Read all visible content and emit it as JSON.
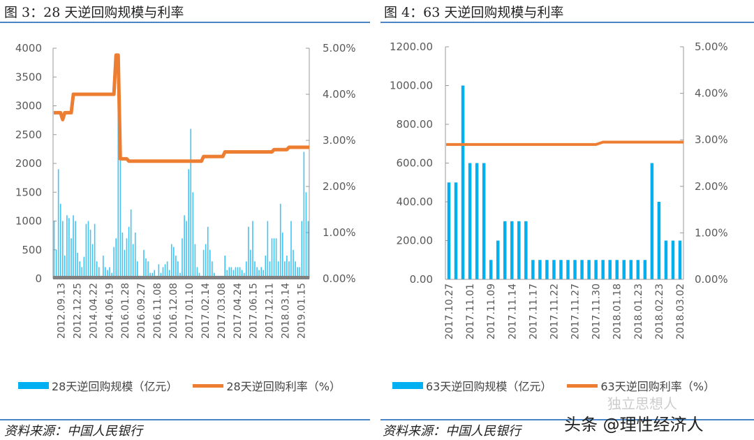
{
  "chart_data": [
    {
      "type": "bar+line",
      "title": "图 3：28 天逆回购规模与利率",
      "ylim": [
        0,
        4000
      ],
      "yticks": [
        "0",
        "500",
        "1000",
        "1500",
        "2000",
        "2500",
        "3000",
        "3500",
        "4000"
      ],
      "y2lim": [
        0,
        5
      ],
      "y2ticks": [
        "0.00%",
        "1.00%",
        "2.00%",
        "3.00%",
        "4.00%",
        "5.00%"
      ],
      "xtick_labels": [
        "2012.09.13",
        "2012.12.25",
        "2014.04.22",
        "2014.06.19",
        "2016.01.28",
        "2016.09.27",
        "2016.11.08",
        "2016.12.08",
        "2017.01.10",
        "2017.02.14",
        "2017.03.08",
        "2017.04.24",
        "2017.06.15",
        "2017.12.11",
        "2018.03.14",
        "2019.01.15"
      ],
      "series": [
        {
          "name": "28天逆回购规模（亿元）",
          "type": "bar",
          "color": "#00b0f0",
          "values": [
            1000,
            500,
            1900,
            1300,
            1000,
            400,
            1100,
            1050,
            700,
            1100,
            1000,
            450,
            300,
            200,
            380,
            950,
            1000,
            850,
            600,
            950,
            300,
            200,
            50,
            400,
            200,
            150,
            200,
            100,
            550,
            700,
            3600,
            2600,
            800,
            500,
            700,
            900,
            1200,
            600,
            800,
            300,
            50,
            50,
            500,
            350,
            300,
            100,
            100,
            150,
            50,
            250,
            100,
            200,
            250,
            300,
            150,
            600,
            550,
            400,
            300,
            100,
            700,
            1100,
            1000,
            1900,
            2600,
            1500,
            600,
            200,
            100,
            50,
            500,
            600,
            900,
            500,
            300,
            100,
            50,
            50,
            50,
            50,
            400,
            150,
            200,
            200,
            150,
            200,
            200,
            200,
            150,
            100,
            300,
            900,
            500,
            1000,
            300,
            200,
            150,
            200,
            150,
            400,
            1000,
            300,
            700,
            700,
            700,
            300,
            1300,
            800,
            300,
            400,
            300,
            1000,
            500,
            300,
            200,
            200,
            1000,
            2200,
            1500,
            1000
          ]
        },
        {
          "name": "28天逆回购利率（%）",
          "type": "line",
          "color": "#ed7d31",
          "values": [
            3.6,
            3.6,
            3.6,
            3.6,
            3.45,
            3.6,
            3.6,
            3.6,
            3.6,
            4.0,
            4.0,
            4.0,
            4.0,
            4.0,
            4.0,
            4.0,
            4.0,
            4.0,
            4.0,
            4.0,
            4.0,
            4.0,
            4.0,
            4.0,
            4.0,
            4.0,
            4.0,
            4.0,
            4.0,
            4.85,
            4.85,
            2.6,
            2.6,
            2.6,
            2.6,
            2.55,
            2.55,
            2.55,
            2.55,
            2.55,
            2.55,
            2.55,
            2.55,
            2.55,
            2.55,
            2.55,
            2.55,
            2.55,
            2.55,
            2.55,
            2.55,
            2.55,
            2.55,
            2.55,
            2.55,
            2.55,
            2.55,
            2.55,
            2.55,
            2.55,
            2.55,
            2.55,
            2.55,
            2.55,
            2.55,
            2.55,
            2.55,
            2.55,
            2.55,
            2.55,
            2.65,
            2.65,
            2.65,
            2.65,
            2.65,
            2.65,
            2.65,
            2.65,
            2.65,
            2.65,
            2.75,
            2.75,
            2.75,
            2.75,
            2.75,
            2.75,
            2.75,
            2.75,
            2.75,
            2.75,
            2.75,
            2.75,
            2.75,
            2.75,
            2.75,
            2.75,
            2.75,
            2.75,
            2.75,
            2.75,
            2.75,
            2.75,
            2.75,
            2.8,
            2.8,
            2.8,
            2.8,
            2.8,
            2.8,
            2.8,
            2.85,
            2.85,
            2.85,
            2.85,
            2.85,
            2.85,
            2.85,
            2.85,
            2.85,
            2.85
          ]
        }
      ],
      "legend": "bottom"
    },
    {
      "type": "bar+line",
      "title": "图 4：63 天逆回购规模与利率",
      "ylim": [
        0,
        1200
      ],
      "yticks": [
        "0.00",
        "200.00",
        "400.00",
        "600.00",
        "800.00",
        "1000.00",
        "1200.00"
      ],
      "y2lim": [
        0,
        5
      ],
      "y2ticks": [
        "0.00%",
        "1.00%",
        "2.00%",
        "3.00%",
        "4.00%",
        "5.00%"
      ],
      "xtick_labels": [
        "2017.10.27",
        "2017.11.01",
        "2017.11.09",
        "2017.11.14",
        "2017.11.17",
        "2017.11.22",
        "2017.11.27",
        "2017.11.30",
        "2018.01.18",
        "2018.01.23",
        "2018.02.23",
        "2018.03.02"
      ],
      "series": [
        {
          "name": "63天逆回购规模（亿元）",
          "type": "bar",
          "color": "#00b0f0",
          "values": [
            500,
            500,
            1000,
            600,
            600,
            600,
            100,
            200,
            300,
            300,
            300,
            300,
            100,
            100,
            100,
            100,
            100,
            100,
            100,
            100,
            100,
            100,
            100,
            100,
            100,
            100,
            100,
            100,
            100,
            600,
            400,
            200,
            200,
            200
          ]
        },
        {
          "name": "63天逆回购利率（%）",
          "type": "line",
          "color": "#ed7d31",
          "values": [
            2.9,
            2.9,
            2.9,
            2.9,
            2.9,
            2.9,
            2.9,
            2.9,
            2.9,
            2.9,
            2.9,
            2.9,
            2.9,
            2.9,
            2.9,
            2.9,
            2.9,
            2.9,
            2.9,
            2.9,
            2.9,
            2.9,
            2.95,
            2.95,
            2.95,
            2.95,
            2.95,
            2.95,
            2.95,
            2.95,
            2.95,
            2.95,
            2.95,
            2.95
          ]
        }
      ],
      "legend": "bottom"
    }
  ],
  "source_left": "资料来源：中国人民银行",
  "source_right": "资料来源：中国人民银行",
  "watermark": "头条 @理性经济人",
  "watermark_faint": "独立思想人"
}
